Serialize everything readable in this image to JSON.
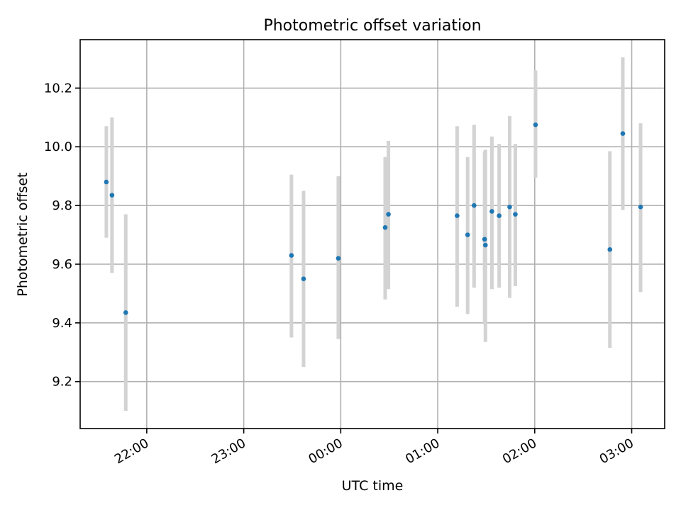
{
  "chart_data": {
    "type": "scatter",
    "title": "Photometric offset variation",
    "xlabel": "UTC time",
    "ylabel": "Photometric offset",
    "x_axis": "time",
    "x_ticks": [
      "22:00",
      "23:00",
      "00:00",
      "01:00",
      "02:00",
      "03:00"
    ],
    "x_tick_minutes": [
      1320,
      1380,
      1440,
      1500,
      1560,
      1620
    ],
    "xlim_minutes": [
      1278.8,
      1640.4
    ],
    "y_ticks": [
      9.2,
      9.4,
      9.6,
      9.8,
      10.0,
      10.2
    ],
    "ylim": [
      9.04,
      10.365
    ],
    "grid": true,
    "marker_color": "#1f77b4",
    "errorbar_color": "#d3d3d3",
    "points": [
      {
        "time": "21:35",
        "minute": 1295.0,
        "y": 9.88,
        "ylo": 9.69,
        "yhi": 10.07
      },
      {
        "time": "21:39",
        "minute": 1298.5,
        "y": 9.835,
        "ylo": 9.57,
        "yhi": 10.1
      },
      {
        "time": "21:47",
        "minute": 1307.0,
        "y": 9.435,
        "ylo": 9.1,
        "yhi": 9.77
      },
      {
        "time": "23:30",
        "minute": 1409.5,
        "y": 9.63,
        "ylo": 9.35,
        "yhi": 9.905
      },
      {
        "time": "23:37",
        "minute": 1417.0,
        "y": 9.55,
        "ylo": 9.25,
        "yhi": 9.85
      },
      {
        "time": "23:58",
        "minute": 1438.5,
        "y": 9.62,
        "ylo": 9.345,
        "yhi": 9.9
      },
      {
        "time": "00:27",
        "minute": 1467.5,
        "y": 9.725,
        "ylo": 9.48,
        "yhi": 9.965
      },
      {
        "time": "00:30",
        "minute": 1469.5,
        "y": 9.77,
        "ylo": 9.515,
        "yhi": 10.02
      },
      {
        "time": "01:12",
        "minute": 1512.0,
        "y": 9.765,
        "ylo": 9.455,
        "yhi": 10.07
      },
      {
        "time": "01:18",
        "minute": 1518.5,
        "y": 9.7,
        "ylo": 9.43,
        "yhi": 9.965
      },
      {
        "time": "01:22",
        "minute": 1522.5,
        "y": 9.8,
        "ylo": 9.52,
        "yhi": 10.075
      },
      {
        "time": "01:29",
        "minute": 1529.0,
        "y": 9.685,
        "ylo": 9.395,
        "yhi": 9.985
      },
      {
        "time": "01:29",
        "minute": 1529.5,
        "y": 9.665,
        "ylo": 9.335,
        "yhi": 9.99
      },
      {
        "time": "01:34",
        "minute": 1533.5,
        "y": 9.78,
        "ylo": 9.515,
        "yhi": 10.035
      },
      {
        "time": "01:38",
        "minute": 1538.0,
        "y": 9.765,
        "ylo": 9.52,
        "yhi": 10.01
      },
      {
        "time": "01:44",
        "minute": 1544.5,
        "y": 9.795,
        "ylo": 9.485,
        "yhi": 10.105
      },
      {
        "time": "01:48",
        "minute": 1548.0,
        "y": 9.77,
        "ylo": 9.525,
        "yhi": 10.01
      },
      {
        "time": "02:00",
        "minute": 1560.5,
        "y": 10.075,
        "ylo": 9.895,
        "yhi": 10.26
      },
      {
        "time": "02:46",
        "minute": 1606.5,
        "y": 9.65,
        "ylo": 9.315,
        "yhi": 9.985
      },
      {
        "time": "02:54",
        "minute": 1614.5,
        "y": 10.045,
        "ylo": 9.785,
        "yhi": 10.305
      },
      {
        "time": "03:05",
        "minute": 1625.5,
        "y": 9.795,
        "ylo": 9.505,
        "yhi": 10.08
      }
    ]
  }
}
